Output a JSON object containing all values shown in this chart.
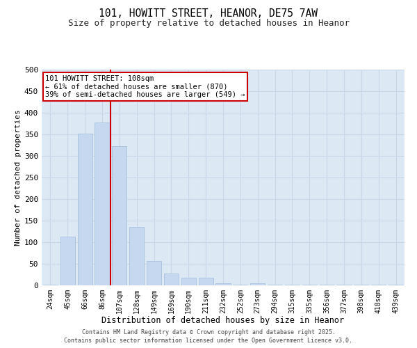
{
  "title1": "101, HOWITT STREET, HEANOR, DE75 7AW",
  "title2": "Size of property relative to detached houses in Heanor",
  "xlabel": "Distribution of detached houses by size in Heanor",
  "ylabel": "Number of detached properties",
  "bar_labels": [
    "24sqm",
    "45sqm",
    "66sqm",
    "86sqm",
    "107sqm",
    "128sqm",
    "149sqm",
    "169sqm",
    "190sqm",
    "211sqm",
    "232sqm",
    "252sqm",
    "273sqm",
    "294sqm",
    "315sqm",
    "335sqm",
    "356sqm",
    "377sqm",
    "398sqm",
    "418sqm",
    "439sqm"
  ],
  "bar_values": [
    1,
    113,
    352,
    378,
    323,
    135,
    57,
    27,
    17,
    17,
    5,
    1,
    5,
    1,
    1,
    1,
    1,
    1,
    1,
    1,
    1
  ],
  "bar_color": "#c5d8f0",
  "bar_edgecolor": "#a0bcd8",
  "subject_index": 4,
  "vline_color": "#cc0000",
  "annotation_text": "101 HOWITT STREET: 108sqm\n← 61% of detached houses are smaller (870)\n39% of semi-detached houses are larger (549) →",
  "annotation_bg": "#ffffff",
  "ylim": [
    0,
    500
  ],
  "yticks": [
    0,
    50,
    100,
    150,
    200,
    250,
    300,
    350,
    400,
    450,
    500
  ],
  "grid_color": "#c8d8e8",
  "background_color": "#dce8f4",
  "footer1": "Contains HM Land Registry data © Crown copyright and database right 2025.",
  "footer2": "Contains public sector information licensed under the Open Government Licence v3.0."
}
